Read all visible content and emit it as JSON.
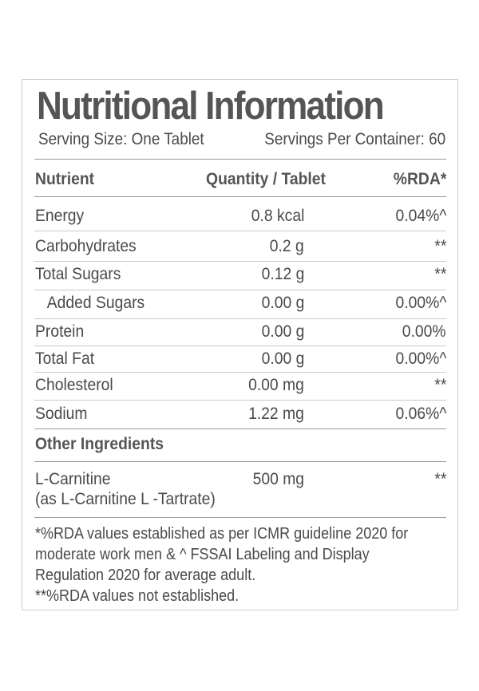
{
  "title": "Nutritional Information",
  "serving_size": "Serving Size: One Tablet",
  "servings_per_container": "Servings Per Container: 60",
  "table": {
    "headers": [
      "Nutrient",
      "Quantity / Tablet",
      "%RDA*"
    ],
    "rows": [
      {
        "nutrient": "Energy",
        "quantity": "0.8 kcal",
        "rda": "0.04%^"
      },
      {
        "nutrient": "Carbohydrates",
        "quantity": "0.2 g",
        "rda": "**"
      },
      {
        "nutrient": "Total Sugars",
        "quantity": "0.12 g",
        "rda": "**"
      },
      {
        "nutrient": "Added Sugars",
        "quantity": "0.00 g",
        "rda": "0.00%^"
      },
      {
        "nutrient": "Protein",
        "quantity": "0.00 g",
        "rda": "0.00%"
      },
      {
        "nutrient": "Total Fat",
        "quantity": "0.00 g",
        "rda": "0.00%^"
      },
      {
        "nutrient": "Cholesterol",
        "quantity": "0.00 mg",
        "rda": "**"
      },
      {
        "nutrient": "Sodium",
        "quantity": "1.22 mg",
        "rda": "0.06%^"
      }
    ]
  },
  "other_ingredients": {
    "heading": "Other Ingredients",
    "items": [
      {
        "name_line1": "L-Carnitine",
        "name_line2": "(as L-Carnitine L -Tartrate)",
        "quantity": "500 mg",
        "rda": "**"
      }
    ]
  },
  "footnotes": [
    "*%RDA values established as per ICMR guideline 2020 for",
    "moderate work men & ^ FSSAI Labeling and Display",
    "Regulation 2020 for average adult.",
    "**%RDA values not established."
  ]
}
